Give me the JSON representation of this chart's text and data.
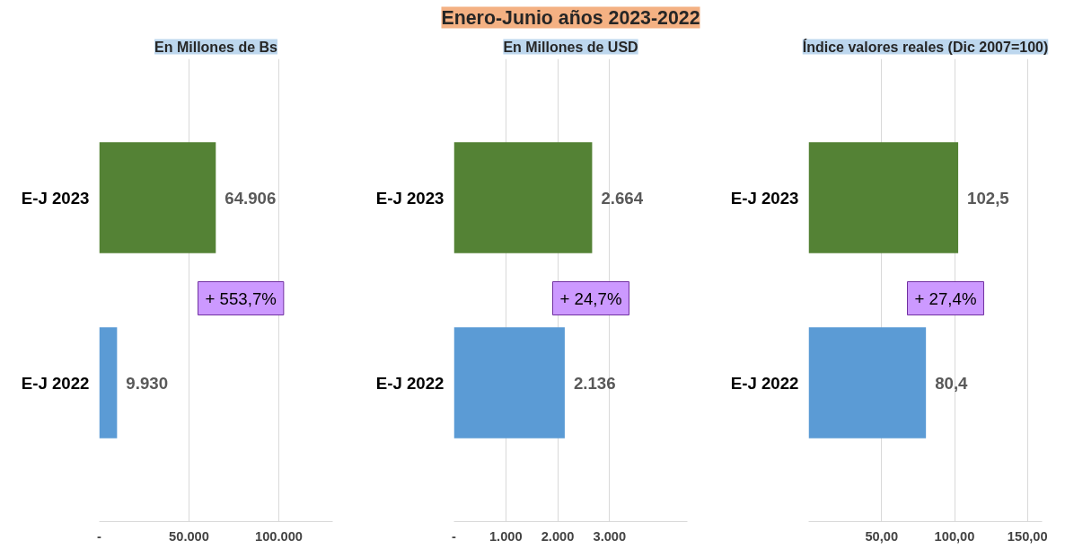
{
  "chart_data": [
    {
      "type": "bar",
      "orientation": "horizontal",
      "subtitle": "En Millones de Bs",
      "categories": [
        "E-J 2023",
        "E-J 2022"
      ],
      "values": [
        64906,
        9930
      ],
      "colors": [
        "#548235",
        "#5b9bd5"
      ],
      "value_labels": [
        "64.906",
        "9.930"
      ],
      "xlim": [
        0,
        130000
      ],
      "xticks": [
        {
          "value": 0,
          "label": "-"
        },
        {
          "value": 50000,
          "label": "50.000"
        },
        {
          "value": 100000,
          "label": "100.000"
        }
      ],
      "grid": "x",
      "annotations": [
        "+ 553,7%"
      ]
    },
    {
      "type": "bar",
      "orientation": "horizontal",
      "title": "Enero-Junio años 2023-2022",
      "subtitle": "En Millones de USD",
      "categories": [
        "E-J 2023",
        "E-J 2022"
      ],
      "values": [
        2664,
        2136
      ],
      "colors": [
        "#548235",
        "#5b9bd5"
      ],
      "value_labels": [
        "2.664",
        "2.136"
      ],
      "xlim": [
        0,
        4500
      ],
      "xticks": [
        {
          "value": 0,
          "label": "-"
        },
        {
          "value": 1000,
          "label": "1.000"
        },
        {
          "value": 2000,
          "label": "2.000"
        },
        {
          "value": 3000,
          "label": "3.000"
        }
      ],
      "grid": "x",
      "annotations": [
        "+ 24,7%"
      ]
    },
    {
      "type": "bar",
      "orientation": "horizontal",
      "subtitle": "Índice valores reales (Dic 2007=100)",
      "categories": [
        "E-J 2023",
        "E-J 2022"
      ],
      "values": [
        102.5,
        80.4
      ],
      "colors": [
        "#548235",
        "#5b9bd5"
      ],
      "value_labels": [
        "102,5",
        "80,4"
      ],
      "xlim": [
        0,
        160
      ],
      "xticks": [
        {
          "value": 50,
          "label": "50,00"
        },
        {
          "value": 100,
          "label": "100,00"
        },
        {
          "value": 150,
          "label": "150,00"
        }
      ],
      "grid": "x",
      "annotations": [
        "+ 27,4%"
      ]
    }
  ]
}
